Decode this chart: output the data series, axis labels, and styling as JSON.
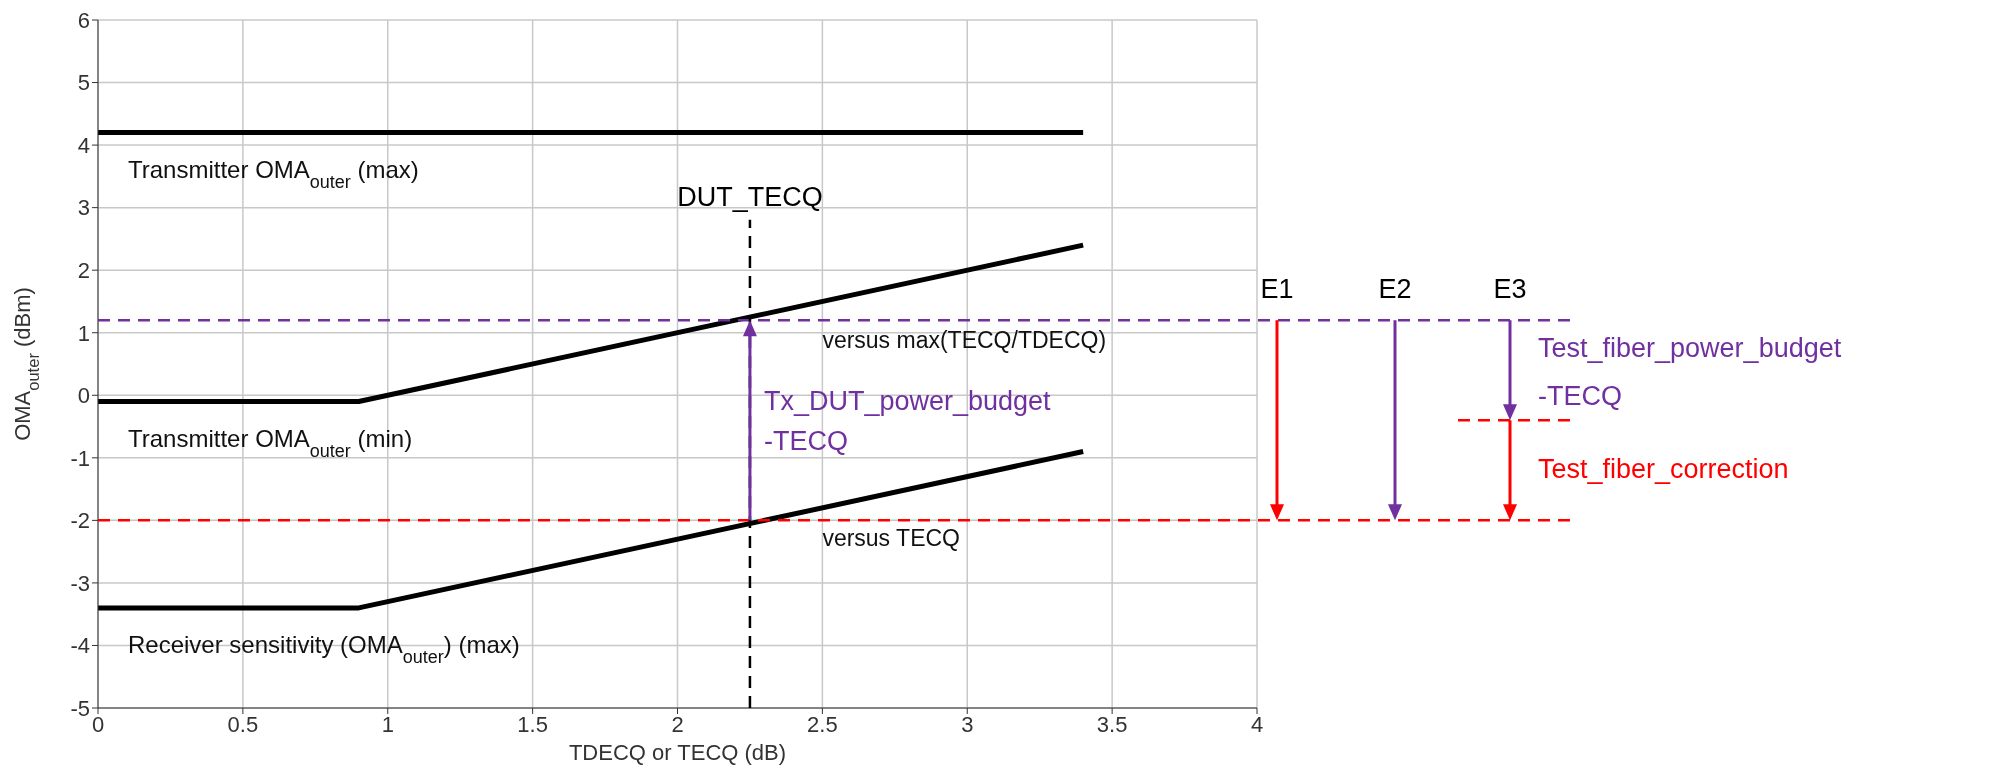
{
  "chart_data": {
    "type": "line",
    "xlabel": "TDECQ or TECQ (dB)",
    "ylabel": "OMA$_{outer}$ (dBm)",
    "x": [
      0,
      0.9,
      3.4
    ],
    "series": [
      {
        "name": "Transmitter OMA$_{outer}$ (max)",
        "color": "#000000",
        "values": [
          4.2,
          4.2,
          4.2
        ]
      },
      {
        "name": "Transmitter OMA$_{outer}$ (min)",
        "color": "#000000",
        "values": [
          -0.1,
          -0.1,
          2.4
        ]
      },
      {
        "name": "Receiver sensitivity (OMA$_{outer}$) (max)",
        "color": "#000000",
        "values": [
          -3.4,
          -3.4,
          -0.9
        ]
      }
    ],
    "xlim": [
      0,
      4
    ],
    "xticks": [
      0,
      0.5,
      1,
      1.5,
      2,
      2.5,
      3,
      3.5,
      4
    ],
    "ylim": [
      -5,
      6
    ],
    "yticks": [
      -5,
      -4,
      -3,
      -2,
      -1,
      0,
      1,
      2,
      3,
      4,
      5,
      6
    ],
    "grid": true,
    "marker": "none",
    "line_style": "solid",
    "ref_lines": [
      {
        "axis": "x",
        "value": 2.25,
        "label": "DUT_TECQ",
        "color": "#000000",
        "line_style": "dashed"
      },
      {
        "axis": "y",
        "value": 1.2,
        "label": null,
        "color": "#7030a0",
        "line_style": "dashed"
      },
      {
        "axis": "y",
        "value": -2,
        "label": null,
        "color": "#ff0000",
        "line_style": "dashed"
      },
      {
        "axis": "y",
        "value": -0.4,
        "label": "Test_fiber_correction",
        "color": "#ff0000",
        "line_style": "dashed"
      }
    ],
    "annotations": [
      "versus max(TECQ/TDECQ)",
      "versus TECQ",
      "Tx_DUT_power_budget\n-TECQ",
      "E1",
      "E2",
      "E3",
      "Test_fiber_power_budget\n-TECQ"
    ]
  }
}
